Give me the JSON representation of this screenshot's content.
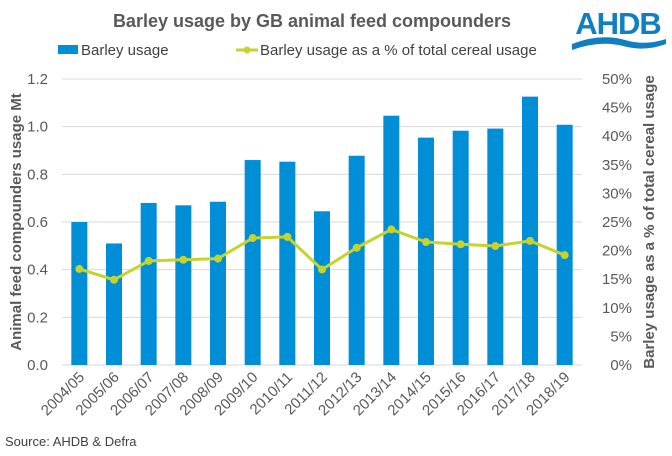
{
  "chart_data": {
    "type": "bar",
    "title": "Barley usage by GB animal feed compounders",
    "categories": [
      "2004/05",
      "2005/06",
      "2006/07",
      "2007/08",
      "2008/09",
      "2009/10",
      "2010/11",
      "2011/12",
      "2012/13",
      "2013/14",
      "2014/15",
      "2015/16",
      "2016/17",
      "2017/18",
      "2018/19"
    ],
    "series": [
      {
        "name": "Barley usage",
        "type": "bar",
        "axis": "left",
        "color": "#008ed6",
        "values": [
          0.6,
          0.51,
          0.68,
          0.67,
          0.685,
          0.86,
          0.853,
          0.645,
          0.878,
          1.046,
          0.954,
          0.983,
          0.992,
          1.126,
          1.008
        ]
      },
      {
        "name": "Barley usage as a % of total cereal usage",
        "type": "line",
        "axis": "right",
        "color": "#c5d32b",
        "values": [
          16.8,
          14.9,
          18.2,
          18.4,
          18.6,
          22.2,
          22.4,
          16.7,
          20.5,
          23.7,
          21.5,
          21.1,
          20.8,
          21.7,
          19.2
        ]
      }
    ],
    "y_left": {
      "label": "Animal feed compounders usage Mt",
      "range": [
        0,
        1.2
      ],
      "ticks": [
        "0.0",
        "0.2",
        "0.4",
        "0.6",
        "0.8",
        "1.0",
        "1.2"
      ],
      "tick_values": [
        0,
        0.2,
        0.4,
        0.6,
        0.8,
        1.0,
        1.2
      ]
    },
    "y_right": {
      "label": "Barley usage as a % of total cereal usage",
      "range": [
        0,
        50
      ],
      "ticks": [
        "0%",
        "5%",
        "10%",
        "15%",
        "20%",
        "25%",
        "30%",
        "35%",
        "40%",
        "45%",
        "50%"
      ],
      "tick_values": [
        0,
        5,
        10,
        15,
        20,
        25,
        30,
        35,
        40,
        45,
        50
      ]
    },
    "grid": true,
    "legend_position": "top",
    "source": "Source: AHDB & Defra"
  },
  "logo": {
    "text": "AHDB",
    "color": "#0f7fc2"
  }
}
